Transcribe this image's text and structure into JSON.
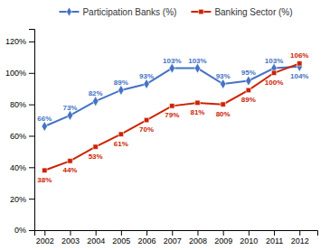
{
  "chart_data": {
    "type": "line",
    "x": [
      2002,
      2003,
      2004,
      2005,
      2006,
      2007,
      2008,
      2009,
      2010,
      2011,
      2012
    ],
    "xlim": [
      2001.6,
      2012.7
    ],
    "xticks": [
      2002,
      2003,
      2004,
      2005,
      2006,
      2007,
      2008,
      2009,
      2010,
      2011,
      2012
    ],
    "ylim": [
      0,
      128
    ],
    "yticks": [
      {
        "value": 0,
        "label": "0%"
      },
      {
        "value": 20,
        "label": "20%"
      },
      {
        "value": 40,
        "label": "40%"
      },
      {
        "value": 60,
        "label": "60%"
      },
      {
        "value": 80,
        "label": "80%"
      },
      {
        "value": 100,
        "label": "100%"
      },
      {
        "value": 120,
        "label": "120%"
      }
    ],
    "grid": false,
    "legend": "top",
    "data_labels": true,
    "series": [
      {
        "name": "Participation Banks (%)",
        "color": "#4472c4",
        "marker": "diamond",
        "values": [
          66,
          73,
          82,
          89,
          93,
          103,
          103,
          93,
          95,
          103,
          104
        ],
        "value_labels": [
          "66%",
          "73%",
          "82%",
          "89%",
          "93%",
          "103%",
          "103%",
          "93%",
          "95%",
          "103%",
          "104%"
        ]
      },
      {
        "name": "Banking Sector (%)",
        "color": "#cc2200",
        "marker": "square",
        "values": [
          38,
          44,
          53,
          61,
          70,
          79,
          81,
          80,
          89,
          100,
          106
        ],
        "value_labels": [
          "38%",
          "44%",
          "53%",
          "61%",
          "70%",
          "79%",
          "81%",
          "80%",
          "89%",
          "100%",
          "106%"
        ]
      }
    ]
  }
}
